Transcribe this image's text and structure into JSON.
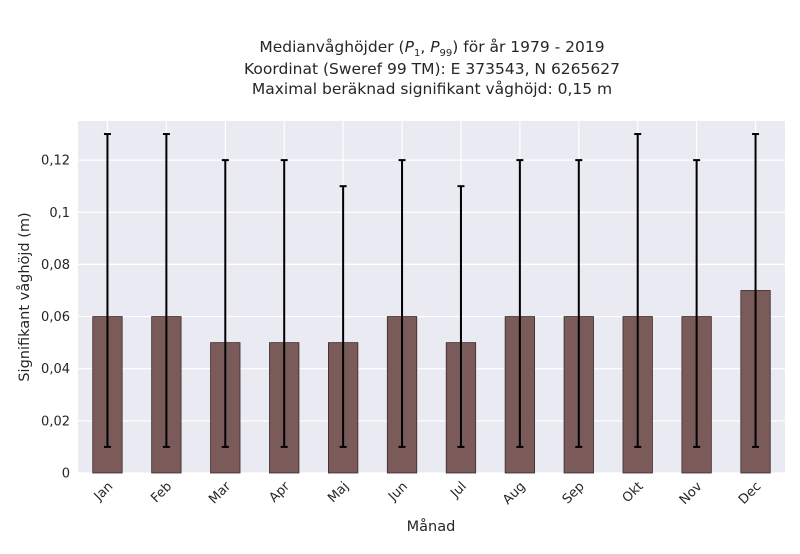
{
  "chart_data": {
    "type": "bar",
    "title_lines": [
      "Medianvåghöjder (P1, P99) för år 1979 - 2019",
      "Koordinat (Sweref 99 TM): E 373543, N 6265627",
      "Maximal beräknad signifikant våghöjd: 0,15 m"
    ],
    "xlabel": "Månad",
    "ylabel": "Signifikant våghöjd (m)",
    "categories": [
      "Jan",
      "Feb",
      "Mar",
      "Apr",
      "Maj",
      "Jun",
      "Jul",
      "Aug",
      "Sep",
      "Okt",
      "Nov",
      "Dec"
    ],
    "series": [
      {
        "values": [
          0.06,
          0.06,
          0.05,
          0.05,
          0.05,
          0.06,
          0.05,
          0.06,
          0.06,
          0.06,
          0.06,
          0.07
        ],
        "p1": [
          0.01,
          0.01,
          0.01,
          0.01,
          0.01,
          0.01,
          0.01,
          0.01,
          0.01,
          0.01,
          0.01,
          0.01
        ],
        "p99": [
          0.13,
          0.13,
          0.12,
          0.12,
          0.11,
          0.12,
          0.11,
          0.12,
          0.12,
          0.13,
          0.12,
          0.13
        ]
      }
    ],
    "yticks": [
      0,
      0.02,
      0.04,
      0.06,
      0.08,
      0.1,
      0.12
    ],
    "ytick_labels": [
      "0",
      "0,02",
      "0,04",
      "0,06",
      "0,08",
      "0,1",
      "0,12"
    ],
    "ylim": [
      0,
      0.135
    ],
    "grid": true,
    "colors": {
      "bar": "#7b5a5a",
      "bar_edge": "#3a2a2a",
      "error_bar": "#000000",
      "plot_background": "#eaeaf2",
      "grid": "#ffffff"
    }
  }
}
